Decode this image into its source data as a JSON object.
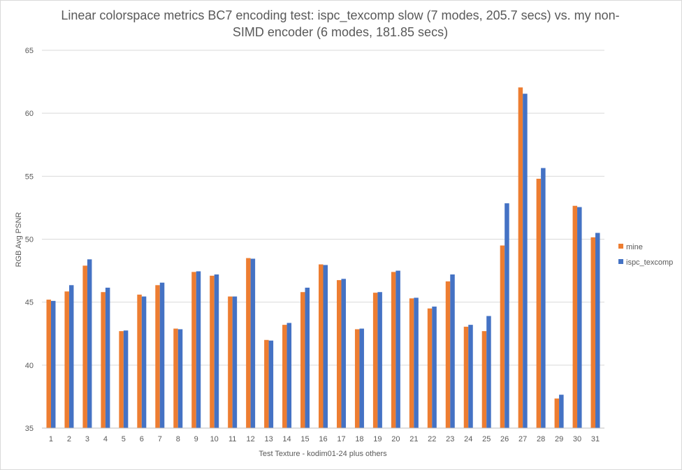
{
  "chart_data": {
    "type": "bar",
    "title_lines": [
      "Linear colorspace metrics BC7 encoding test: ispc_texcomp slow (7 modes, 205.7 secs) vs. my non-",
      "SIMD encoder (6 modes, 181.85 secs)"
    ],
    "xlabel": "Test Texture - kodim01-24 plus others",
    "ylabel": "RGB Avg PSNR",
    "ylim": [
      35,
      65
    ],
    "yticks": [
      35,
      40,
      45,
      50,
      55,
      60,
      65
    ],
    "grid": true,
    "legend_position": "right",
    "categories": [
      "1",
      "2",
      "3",
      "4",
      "5",
      "6",
      "7",
      "8",
      "9",
      "10",
      "11",
      "12",
      "13",
      "14",
      "15",
      "16",
      "17",
      "18",
      "19",
      "20",
      "21",
      "22",
      "23",
      "24",
      "25",
      "26",
      "27",
      "28",
      "29",
      "30",
      "31"
    ],
    "series": [
      {
        "name": "mine",
        "color": "#ED7D31",
        "values": [
          45.2,
          45.85,
          47.9,
          45.8,
          42.7,
          45.6,
          46.35,
          42.9,
          47.4,
          47.1,
          45.45,
          48.5,
          42.0,
          43.2,
          45.8,
          48.0,
          46.75,
          42.85,
          45.75,
          47.4,
          45.3,
          44.5,
          46.65,
          43.05,
          42.7,
          49.5,
          62.05,
          54.8,
          37.35,
          52.65,
          50.15
        ]
      },
      {
        "name": "ispc_texcomp",
        "color": "#4472C4",
        "values": [
          45.1,
          46.35,
          48.4,
          46.15,
          42.75,
          45.45,
          46.55,
          42.85,
          47.45,
          47.2,
          45.45,
          48.45,
          41.95,
          43.35,
          46.15,
          47.95,
          46.85,
          42.9,
          45.8,
          47.5,
          45.35,
          44.65,
          47.2,
          43.2,
          43.9,
          52.85,
          61.55,
          55.65,
          37.65,
          52.55,
          50.5
        ]
      }
    ]
  }
}
